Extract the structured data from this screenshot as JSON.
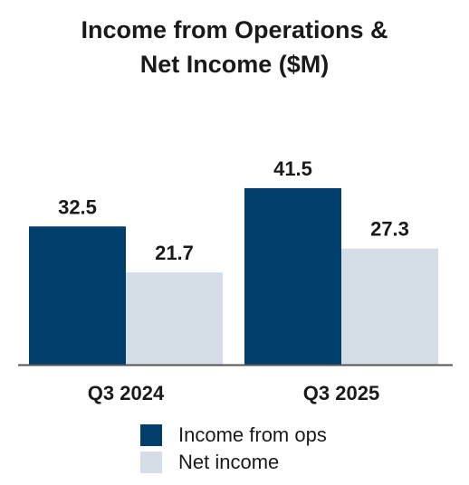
{
  "title_line1": "Income from Operations &",
  "title_line2": "Net Income ($M)",
  "chart_data": {
    "type": "bar",
    "title": "Income from Operations & Net Income ($M)",
    "categories": [
      "Q3 2024",
      "Q3 2025"
    ],
    "series": [
      {
        "name": "Income from ops",
        "values": [
          32.5,
          41.5
        ],
        "color": "#003f6b"
      },
      {
        "name": "Net income",
        "values": [
          21.7,
          27.3
        ],
        "color": "#d5dee7"
      }
    ],
    "data_labels": [
      [
        "32.5",
        "41.5"
      ],
      [
        "21.7",
        "27.3"
      ]
    ],
    "ylim": [
      0,
      50
    ],
    "grid": false,
    "legend_position": "bottom"
  }
}
